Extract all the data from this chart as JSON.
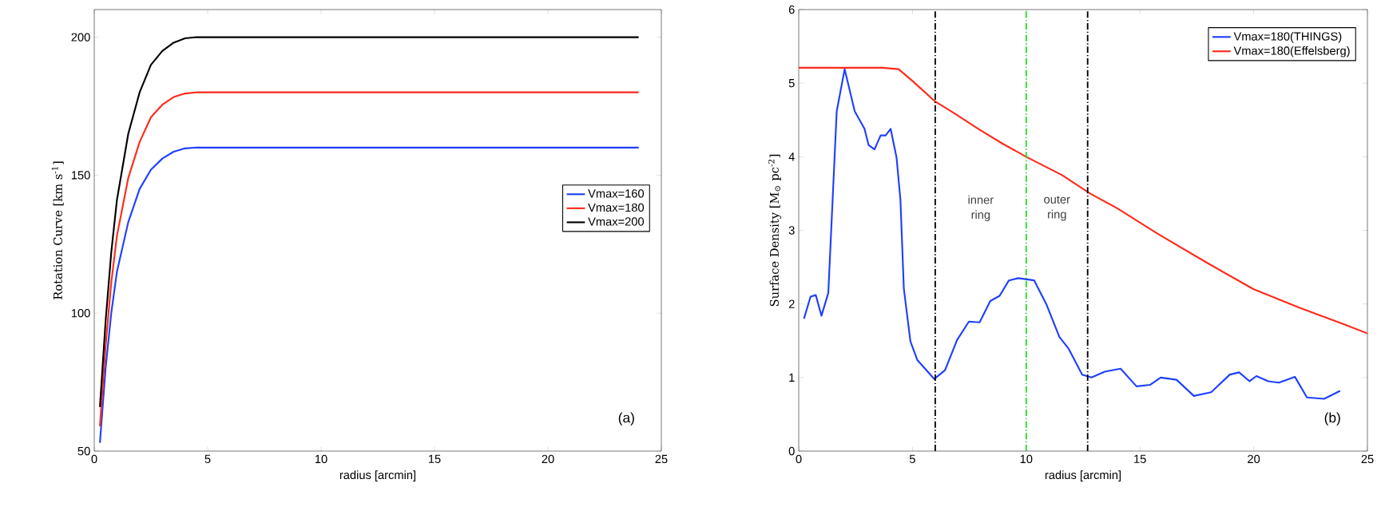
{
  "chart_data": [
    {
      "type": "line",
      "xlabel": "radius [arcmin]",
      "ylabel": "Rotation Curve [km s$^{-1}$]",
      "x": [
        0.25,
        0.5,
        0.75,
        1,
        1.5,
        2,
        2.5,
        3,
        3.5,
        4,
        4.5,
        24
      ],
      "series": [
        {
          "name": "Vmax=160",
          "color": "#1f3fff",
          "values": [
            53,
            80,
            100,
            115,
            133,
            145,
            152,
            156,
            158.5,
            159.7,
            160,
            160
          ]
        },
        {
          "name": "Vmax=180",
          "color": "#ff2a1a",
          "values": [
            59,
            88,
            111,
            128,
            149,
            162,
            171,
            175.5,
            178.3,
            179.6,
            180,
            180
          ]
        },
        {
          "name": "Vmax=200",
          "color": "#000000",
          "values": [
            66,
            97,
            122,
            141,
            165,
            180,
            190,
            195,
            198,
            199.6,
            200,
            200
          ]
        }
      ],
      "xlim": [
        0,
        25
      ],
      "ylim": [
        50,
        210
      ],
      "xticks": [
        0,
        5,
        10,
        15,
        20,
        25
      ],
      "yticks": [
        50,
        100,
        150,
        200
      ],
      "legend": "right",
      "marker": "none",
      "line_style": "solid",
      "grid": false,
      "annotations": [
        "(a)"
      ]
    },
    {
      "type": "line",
      "xlabel": "radius [arcmin]",
      "ylabel": "Surface Density [M$_{⊙}$ pc$^{-2}$]",
      "series": [
        {
          "name": "Vmax=180(THINGS)",
          "color": "#1f3fff",
          "x": [
            0.23,
            0.52,
            0.75,
            1.0,
            1.3,
            1.67,
            2.02,
            2.46,
            2.89,
            3.07,
            3.33,
            3.6,
            3.82,
            4.04,
            4.3,
            4.47,
            4.62,
            4.91,
            5.21,
            5.96,
            6.43,
            6.96,
            7.48,
            7.95,
            8.42,
            8.83,
            9.24,
            9.65,
            10.35,
            10.88,
            11.46,
            11.87,
            12.46,
            12.87,
            13.45,
            14.15,
            14.85,
            15.44,
            15.91,
            16.61,
            17.37,
            18.13,
            18.95,
            19.36,
            19.82,
            20.12,
            20.64,
            21.11,
            21.81,
            22.34,
            23.1,
            23.8
          ],
          "values": [
            1.8,
            2.1,
            2.12,
            1.84,
            2.15,
            4.62,
            5.19,
            4.62,
            4.38,
            4.16,
            4.1,
            4.29,
            4.29,
            4.38,
            3.99,
            3.42,
            2.21,
            1.49,
            1.24,
            0.98,
            1.1,
            1.51,
            1.76,
            1.75,
            2.04,
            2.11,
            2.32,
            2.35,
            2.32,
            2.0,
            1.55,
            1.39,
            1.04,
            1.0,
            1.08,
            1.12,
            0.88,
            0.9,
            1.0,
            0.97,
            0.75,
            0.8,
            1.04,
            1.07,
            0.95,
            1.02,
            0.95,
            0.93,
            1.01,
            0.73,
            0.71,
            0.82
          ]
        },
        {
          "name": "Vmax=180(Effelsberg)",
          "color": "#ff2a1a",
          "x": [
            0,
            3.68,
            4.39,
            5.0,
            5.96,
            6.84,
            7.89,
            8.95,
            10,
            11.58,
            12.81,
            14,
            15.8,
            18,
            20,
            22,
            24,
            25
          ],
          "values": [
            5.21,
            5.21,
            5.19,
            5.03,
            4.76,
            4.59,
            4.38,
            4.18,
            4.0,
            3.75,
            3.5,
            3.3,
            2.95,
            2.55,
            2.2,
            1.95,
            1.72,
            1.6
          ]
        }
      ],
      "xlim": [
        0,
        25
      ],
      "ylim": [
        0,
        6
      ],
      "xticks": [
        0,
        5,
        10,
        15,
        20,
        25
      ],
      "yticks": [
        0,
        1,
        2,
        3,
        4,
        5,
        6
      ],
      "ref_lines": [
        {
          "axis": "x",
          "value": 6,
          "color": "#000000",
          "line_style": "dashdot"
        },
        {
          "axis": "x",
          "value": 10,
          "color": "#22dd22",
          "line_style": "dashdot"
        },
        {
          "axis": "x",
          "value": 12.7,
          "color": "#000000",
          "line_style": "dashdot"
        }
      ],
      "legend": "top right",
      "marker": "none",
      "line_style": "solid",
      "grid": false,
      "annotations": [
        "inner ring",
        "outer ring",
        "(b)"
      ]
    }
  ]
}
